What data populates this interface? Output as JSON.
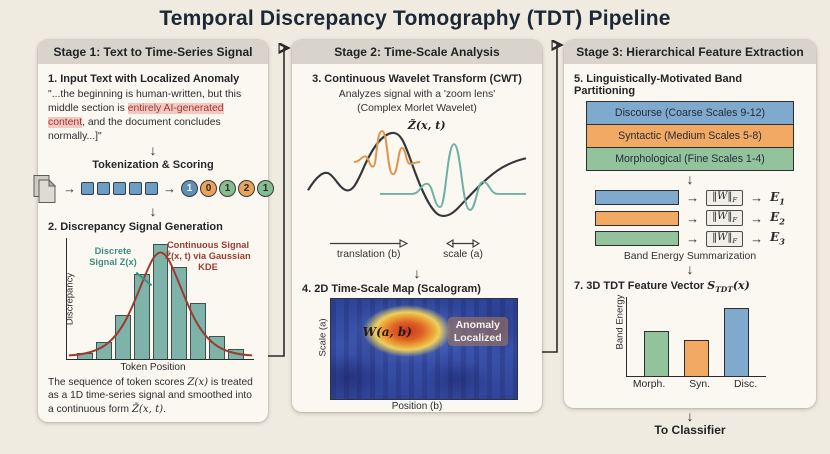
{
  "title": "Temporal Discrepancy Tomography (TDT) Pipeline",
  "stage1": {
    "header": "Stage 1: Text to Time-Series Signal",
    "step1_title": "1. Input Text with Localized Anomaly",
    "quote_pre": "\"...the beginning is human-written, but this middle section is ",
    "quote_highlight": "entirely AI-generated content",
    "quote_post": ", and the document concludes normally...]\"",
    "tokenization_label": "Tokenization & Scoring",
    "token_squares": 5,
    "token_scores": [
      {
        "value": "1",
        "bg": "#5d90b6",
        "fg": "#f4f1e9"
      },
      {
        "value": "0",
        "bg": "#e8a35f",
        "fg": "#2b2b29"
      },
      {
        "value": "1",
        "bg": "#83bd90",
        "fg": "#2b2b29"
      },
      {
        "value": "2",
        "bg": "#e8a35f",
        "fg": "#2b2b29"
      },
      {
        "value": "1",
        "bg": "#83bd90",
        "fg": "#2b2b29"
      }
    ],
    "step2_title": "2. Discrepancy Signal Generation",
    "chart_labels": {
      "ylabel": "Discrepancy",
      "xlabel": "Token Position",
      "discrete_label": "Discrete Signal Z(x)",
      "continuous_label": "Continuous Signal Z̃(x, t) via Gaussian KDE"
    },
    "caption_pre": "The sequence of token scores ",
    "caption_math1": "Z(x)",
    "caption_mid": " is treated as a 1D time-series signal and smoothed into a continuous form ",
    "caption_math2": "Z̃(x, t)",
    "caption_end": "."
  },
  "stage2": {
    "header": "Stage 2: Time-Scale Analysis",
    "step3_title": "3. Continuous Wavelet Transform (CWT)",
    "subtitle1": "Analyzes signal with a 'zoom lens'",
    "subtitle2": "(Complex Morlet Wavelet)",
    "signal_label": "Z̃(x, t)",
    "translation_label": "translation (b)",
    "scale_label": "scale (a)",
    "step4_title": "4. 2D Time-Scale Map (Scalogram)",
    "scalogram": {
      "ylabel": "Scale (a)",
      "xlabel": "Position (b)",
      "hotspot_label": "W(a, b)",
      "annotation": "Anomaly Localized"
    }
  },
  "stage3": {
    "header": "Stage 3: Hierarchical Feature Extraction",
    "step5_title": "5. Linguistically-Motivated Band Partitioning",
    "bands": [
      {
        "label": "Discourse (Coarse Scales 9-12)",
        "color": "#7fa9cd"
      },
      {
        "label": "Syntactic (Medium Scales 5-8)",
        "color": "#f2a963"
      },
      {
        "label": "Morphological (Fine Scales 1-4)",
        "color": "#92c39c"
      }
    ],
    "norm": "‖W‖",
    "norm_sub": "F",
    "energy_rows": [
      {
        "color": "#7fa9cd",
        "energy": "E",
        "sub": "1"
      },
      {
        "color": "#f2a963",
        "energy": "E",
        "sub": "2"
      },
      {
        "color": "#92c39c",
        "energy": "E",
        "sub": "3"
      }
    ],
    "summarization_label": "Band Energy Summarization",
    "step7_prefix": "7. 3D TDT Feature Vector ",
    "step7_math": "S",
    "step7_sub": "TDT",
    "step7_suffix": "(x)",
    "feature_ylabel": "Band Energy",
    "to_classifier": "To Classifier"
  },
  "chart_data": [
    {
      "id": "discrepancy-histogram",
      "type": "bar",
      "title": "Discrepancy Signal Generation",
      "xlabel": "Token Position",
      "ylabel": "Discrepancy",
      "series_name": "Discrete Signal Z(x)",
      "values": [
        0.05,
        0.14,
        0.36,
        0.7,
        0.95,
        0.76,
        0.46,
        0.19,
        0.08
      ],
      "overlay": {
        "type": "line",
        "name": "Continuous Signal Z̃(x,t) via Gaussian KDE",
        "shape": "gaussian bell over full width, peak aligned with center bar"
      },
      "bar_color": "#7db3a8",
      "line_color": "#9d3b32",
      "ylim": [
        0,
        1
      ],
      "grid": false
    },
    {
      "id": "tdt-feature-vector",
      "type": "bar",
      "categories": [
        "Morph.",
        "Syn.",
        "Disc."
      ],
      "values": [
        0.62,
        0.5,
        0.95
      ],
      "colors": [
        "#92c39c",
        "#f2a963",
        "#7fa9cd"
      ],
      "ylabel": "Band Energy",
      "ylim": [
        0,
        1
      ],
      "grid": false
    },
    {
      "id": "cwt-scalogram",
      "type": "heatmap",
      "xlabel": "Position (b)",
      "ylabel": "Scale (a)",
      "annotations": [
        "W(a, b)",
        "Anomaly Localized"
      ],
      "description": "Blue CWT energy map with a single high-energy red/orange/yellow hotspot at ~42% position, upper-middle scale, marking the localized anomaly",
      "base_color": "#34499f",
      "hotspot_colors": [
        "#c93422",
        "#de6026",
        "#ecd05e"
      ]
    }
  ]
}
